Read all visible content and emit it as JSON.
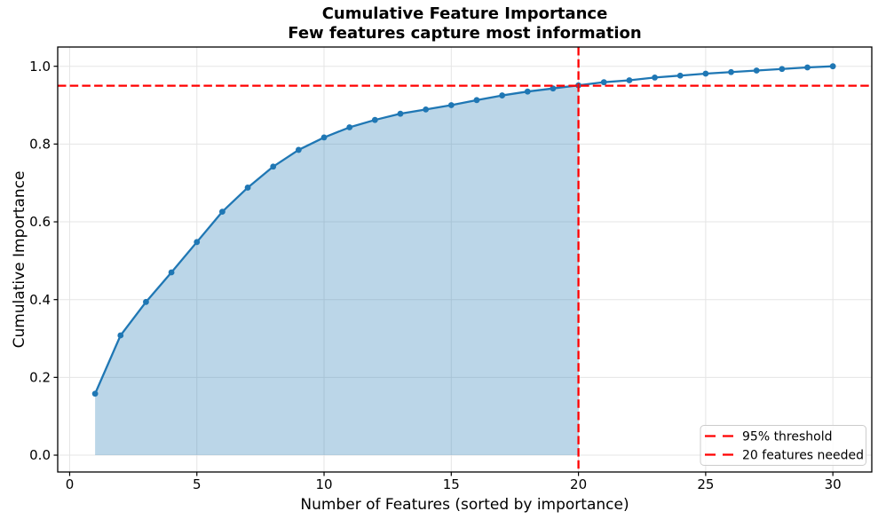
{
  "chart_data": {
    "type": "line",
    "title": "Cumulative Feature Importance",
    "subtitle": "Few features capture most information",
    "xlabel": "Number of Features (sorted by importance)",
    "ylabel": "Cumulative Importance",
    "x": [
      1,
      2,
      3,
      4,
      5,
      6,
      7,
      8,
      9,
      10,
      11,
      12,
      13,
      14,
      15,
      16,
      17,
      18,
      19,
      20,
      21,
      22,
      23,
      24,
      25,
      26,
      27,
      28,
      29,
      30
    ],
    "y": [
      0.158,
      0.308,
      0.394,
      0.47,
      0.548,
      0.626,
      0.688,
      0.742,
      0.785,
      0.817,
      0.843,
      0.862,
      0.878,
      0.889,
      0.9,
      0.913,
      0.925,
      0.935,
      0.943,
      0.951,
      0.959,
      0.964,
      0.971,
      0.976,
      0.981,
      0.985,
      0.989,
      0.993,
      0.997,
      1.0
    ],
    "xlim": [
      -0.47,
      31.53
    ],
    "ylim": [
      -0.0433,
      1.0495
    ],
    "xticks": [
      0,
      5,
      10,
      15,
      20,
      25,
      30
    ],
    "xtick_labels": [
      "0",
      "5",
      "10",
      "15",
      "20",
      "25",
      "30"
    ],
    "yticks": [
      0.0,
      0.2,
      0.4,
      0.6,
      0.8,
      1.0
    ],
    "ytick_labels": [
      "0.0",
      "0.2",
      "0.4",
      "0.6",
      "0.8",
      "1.0"
    ],
    "grid": true,
    "threshold_value": 0.95,
    "features_needed": 20,
    "fill_x_range": [
      1,
      20
    ],
    "fill_baseline": 0,
    "legend": {
      "position": "lower-right",
      "entries": [
        "95% threshold",
        "20 features needed"
      ]
    },
    "colors": {
      "line": "#1f77b4",
      "marker": "#1f77b4",
      "fill": "#1f77b4",
      "fill_opacity": 0.3,
      "threshold": "#ff0000",
      "grid": "#e5e5e5",
      "spine": "#000000",
      "legend_border": "#cccccc",
      "legend_bg": "#ffffff"
    }
  }
}
